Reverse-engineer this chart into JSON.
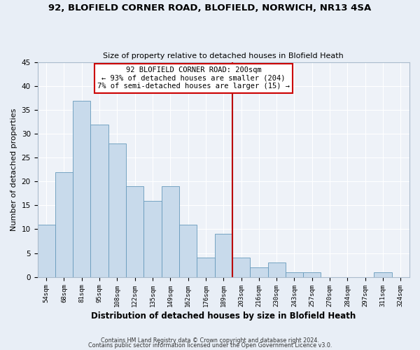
{
  "title1": "92, BLOFIELD CORNER ROAD, BLOFIELD, NORWICH, NR13 4SA",
  "title2": "Size of property relative to detached houses in Blofield Heath",
  "xlabel": "Distribution of detached houses by size in Blofield Heath",
  "ylabel": "Number of detached properties",
  "categories": [
    "54sqm",
    "68sqm",
    "81sqm",
    "95sqm",
    "108sqm",
    "122sqm",
    "135sqm",
    "149sqm",
    "162sqm",
    "176sqm",
    "189sqm",
    "203sqm",
    "216sqm",
    "230sqm",
    "243sqm",
    "257sqm",
    "270sqm",
    "284sqm",
    "297sqm",
    "311sqm",
    "324sqm"
  ],
  "values": [
    11,
    22,
    37,
    32,
    28,
    19,
    16,
    19,
    11,
    4,
    9,
    4,
    2,
    3,
    1,
    1,
    0,
    0,
    0,
    1,
    0
  ],
  "bar_color": "#c8daeb",
  "bar_edge_color": "#6699bb",
  "vline_color": "#bb0000",
  "ylim": [
    0,
    45
  ],
  "yticks": [
    0,
    5,
    10,
    15,
    20,
    25,
    30,
    35,
    40,
    45
  ],
  "annotation_title": "92 BLOFIELD CORNER ROAD: 200sqm",
  "annotation_line1": "← 93% of detached houses are smaller (204)",
  "annotation_line2": "7% of semi-detached houses are larger (15) →",
  "annotation_box_color": "#ffffff",
  "annotation_box_edge": "#cc0000",
  "footer1": "Contains HM Land Registry data © Crown copyright and database right 2024.",
  "footer2": "Contains public sector information licensed under the Open Government Licence v3.0.",
  "bg_color": "#e8eef6",
  "plot_bg_color": "#eef2f8",
  "grid_color": "#ffffff"
}
